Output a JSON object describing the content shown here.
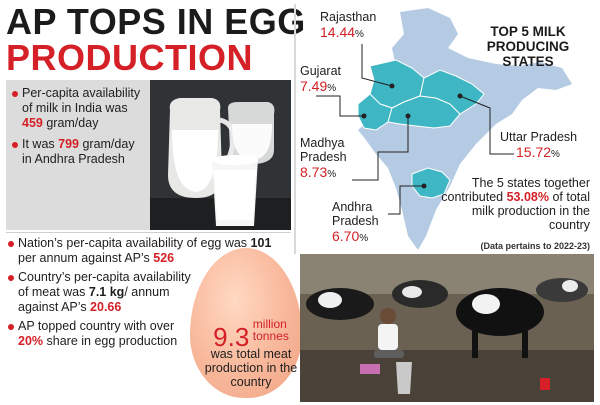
{
  "headline": {
    "line1": "AP TOPS IN EGG",
    "line2": "PRODUCTION"
  },
  "milk_facts": [
    {
      "pre": "Per-capita availability of milk in India was ",
      "value": "459",
      "post": " gram/day"
    },
    {
      "pre": "It was ",
      "value": "799",
      "post": " gram/day in Andhra Pradesh"
    }
  ],
  "facts": [
    {
      "pre": "Nation’s per-capita availability of egg was ",
      "v1": "101",
      "mid": " per annum against AP’s ",
      "v2": "526"
    },
    {
      "pre": "Country’s per-capita availability of meat was ",
      "v1": "7.1 kg",
      "mid": "/ annum against AP’s ",
      "v2": "20.66"
    },
    {
      "pre": "AP topped country with over ",
      "v1": "20%",
      "mid": " share in egg production",
      "v2": ""
    }
  ],
  "egg": {
    "value": "9.3",
    "unit_line1": "million",
    "unit_line2": "tonnes",
    "caption": "was total meat production in the country"
  },
  "map": {
    "title_line1": "TOP 5 MILK",
    "title_line2": "PRODUCING",
    "title_line3": "STATES",
    "map_color": "#3fb6c4",
    "land_color": "#b5cbe4",
    "states": [
      {
        "name_line1": "Rajasthan",
        "name_line2": "",
        "value": "14.44",
        "pct": "%"
      },
      {
        "name_line1": "Gujarat",
        "name_line2": "",
        "value": "7.49",
        "pct": "%"
      },
      {
        "name_line1": "Madhya",
        "name_line2": "Pradesh",
        "value": "8.73",
        "pct": "%"
      },
      {
        "name_line1": "Uttar Pradesh",
        "name_line2": "",
        "value": "15.72",
        "pct": "%"
      },
      {
        "name_line1": "Andhra",
        "name_line2": "Pradesh",
        "value": "6.70",
        "pct": "%"
      }
    ],
    "summary_pre": "The 5 states together contributed ",
    "summary_value": "53.08%",
    "summary_post": " of total milk production in the country",
    "note": "(Data pertains to 2022-23)"
  }
}
